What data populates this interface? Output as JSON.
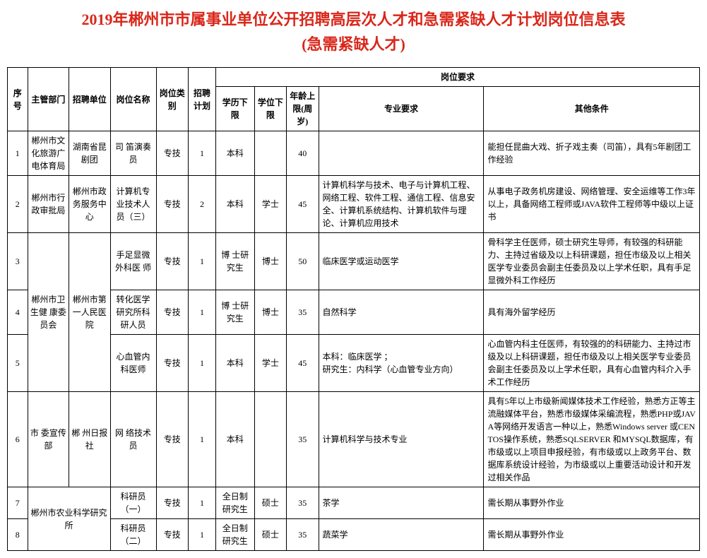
{
  "title_line1": "2019年郴州市市属事业单位公开招聘高层次人才和急需紧缺人才计划岗位信息表",
  "title_line2": "(急需紧缺人才)",
  "headers": {
    "seq": "序号",
    "dept": "主管部门",
    "unit": "招聘单位",
    "position": "岗位名称",
    "type": "岗位类别",
    "plan": "招聘计划",
    "requirements": "岗位要求",
    "edu": "学历下限",
    "degree": "学位下限",
    "age": "年龄上限(周岁)",
    "major": "专业要求",
    "other": "其他条件"
  },
  "rows": [
    {
      "seq": "1",
      "dept": "郴州市文化旅游广电体育局",
      "unit": "湖南省昆剧团",
      "position": "司 笛演奏员",
      "type": "专技",
      "plan": "1",
      "edu": "本科",
      "degree": "",
      "age": "40",
      "major": "",
      "other": "能担任昆曲大戏、折子戏主奏（司笛），具有5年剧团工作经验"
    },
    {
      "seq": "2",
      "dept": "郴州市行 政审批局",
      "unit": "郴州市政务服务中心",
      "position": "计算机专业技术人员（三）",
      "type": "专技",
      "plan": "2",
      "edu": "本科",
      "degree": "学士",
      "age": "45",
      "major": "计算机科学与技术、电子与计算机工程、网络工程、软件工程、通信工程、信息安全、计算机系统结构、计算机软件与理论、计算机应用技术",
      "other": "从事电子政务机房建设、网络管理、安全运维等工作3年以上，具备网络工程师或JAVA软件工程师等中级以上证书"
    },
    {
      "seq": "3",
      "dept": "郴州市卫 生健 康委员会",
      "unit": "郴州市第一人民医院",
      "position": "手足显微外科医 师",
      "type": "专技",
      "plan": "1",
      "edu": "博 士研究生",
      "degree": "博士",
      "age": "50",
      "major": "临床医学或运动医学",
      "other": "骨科学主任医师，硕士研究生导师，有较强的科研能力、主持过省级及以上科研课题，担任市级及以上相关医学专业委员会副主任委员及以上学术任职，具有手足显微外科工作经历"
    },
    {
      "seq": "4",
      "position": "转化医学研究所科研人员",
      "type": "专技",
      "plan": "1",
      "edu": "博 士研究生",
      "degree": "博士",
      "age": "35",
      "major": "自然科学",
      "other": "具有海外留学经历"
    },
    {
      "seq": "5",
      "position": "心血管内科医师",
      "type": "专技",
      "plan": "1",
      "edu": "本科",
      "degree": "学士",
      "age": "45",
      "major": "本科：临床医学 ；\n研究生：内科学（心血管专业方向）",
      "other": "心血管内科主任医师，有较强的的科研能力、主持过市级及以上科研课题，担任市级及以上相关医学专业委员会副主任委员及以上学术任职，具有心血管内科介入手术工作经历"
    },
    {
      "seq": "6",
      "dept": "市 委宣传部",
      "unit": "郴 州日报社",
      "position": "网 络技术员",
      "type": "专技",
      "plan": "1",
      "edu": "本科",
      "degree": "",
      "age": "35",
      "major": "计算机科学与技术专业",
      "other": "具有5年以上市级新闻媒体技术工作经验，熟悉方正等主流融媒体平台，熟悉市级媒体采编流程，熟悉PHP或JAVA等网络开发语言一种以上，熟悉Windows server 或CENTOS操作系统，熟悉SQLSERVER 和MYSQL数据库，有市级或以上项目申报经验，有市级或以上政务平台、数据库系统设计经验，为市级或以上重要活动设计和开发过相关作品"
    },
    {
      "seq": "7",
      "dept": "郴州市农业科学研究所",
      "position": "科研员（一）",
      "type": "专技",
      "plan": "1",
      "edu": "全日制研究生",
      "degree": "硕士",
      "age": "35",
      "major": "茶学",
      "other": "需长期从事野外作业"
    },
    {
      "seq": "8",
      "position": "科研员（二）",
      "type": "专技",
      "plan": "1",
      "edu": "全日制研究生",
      "degree": "硕士",
      "age": "35",
      "major": "蔬菜学",
      "other": "需长期从事野外作业"
    }
  ]
}
